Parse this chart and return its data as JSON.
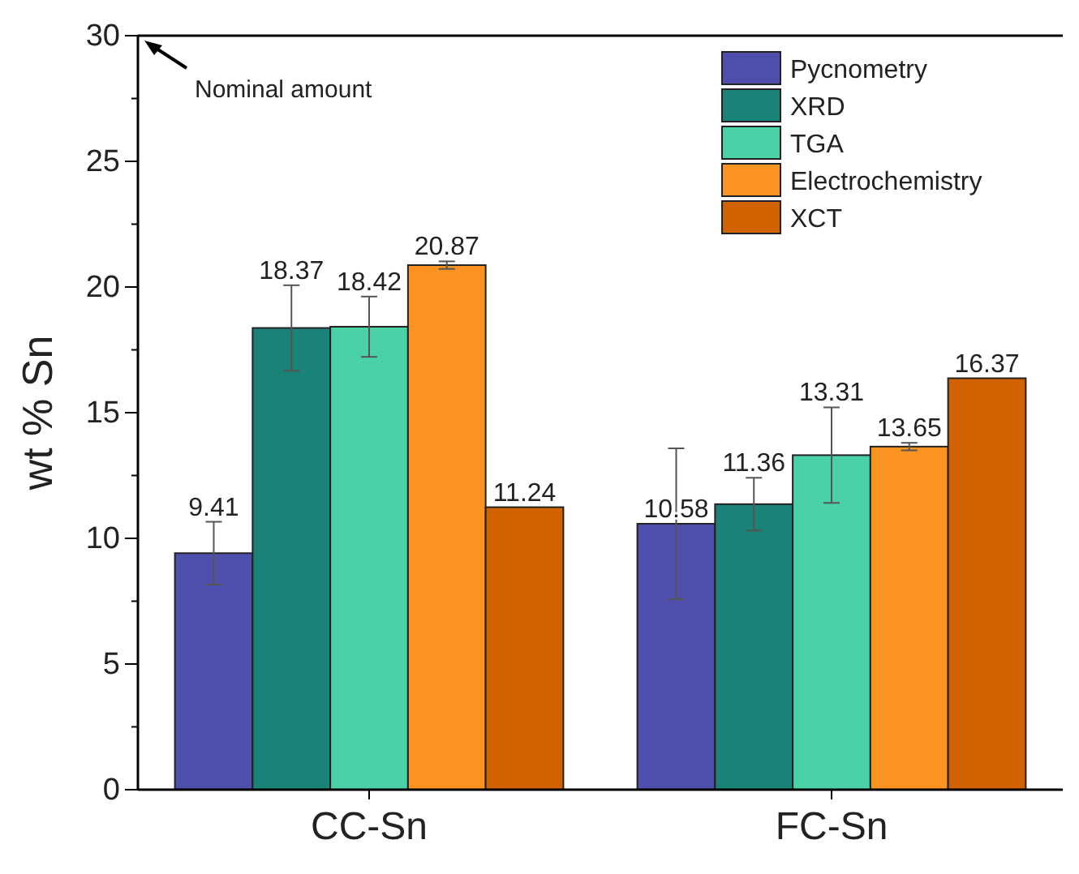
{
  "chart_data": {
    "type": "bar",
    "ylabel": "wt % Sn",
    "categories": [
      "CC-Sn",
      "FC-Sn"
    ],
    "ylim": [
      0,
      30
    ],
    "yticks": [
      0,
      5,
      10,
      15,
      20,
      25,
      30
    ],
    "grid": false,
    "legend": "top right",
    "data_labels": true,
    "annotations": [
      "Nominal amount"
    ],
    "series": [
      {
        "name": "Pycnometry",
        "color": "#4f4fae",
        "values": [
          9.41,
          10.58
        ],
        "errors": [
          1.25,
          3.0
        ]
      },
      {
        "name": "XRD",
        "color": "#1b8277",
        "values": [
          18.37,
          11.36
        ],
        "errors": [
          1.7,
          1.05
        ]
      },
      {
        "name": "TGA",
        "color": "#4bd1a8",
        "values": [
          18.42,
          13.31
        ],
        "errors": [
          1.2,
          1.9
        ]
      },
      {
        "name": "Electrochemistry",
        "color": "#fb9322",
        "values": [
          20.87,
          13.65
        ],
        "errors": [
          0.15,
          0.15
        ]
      },
      {
        "name": "XCT",
        "color": "#d06200",
        "values": [
          11.24,
          16.37
        ]
      }
    ]
  }
}
